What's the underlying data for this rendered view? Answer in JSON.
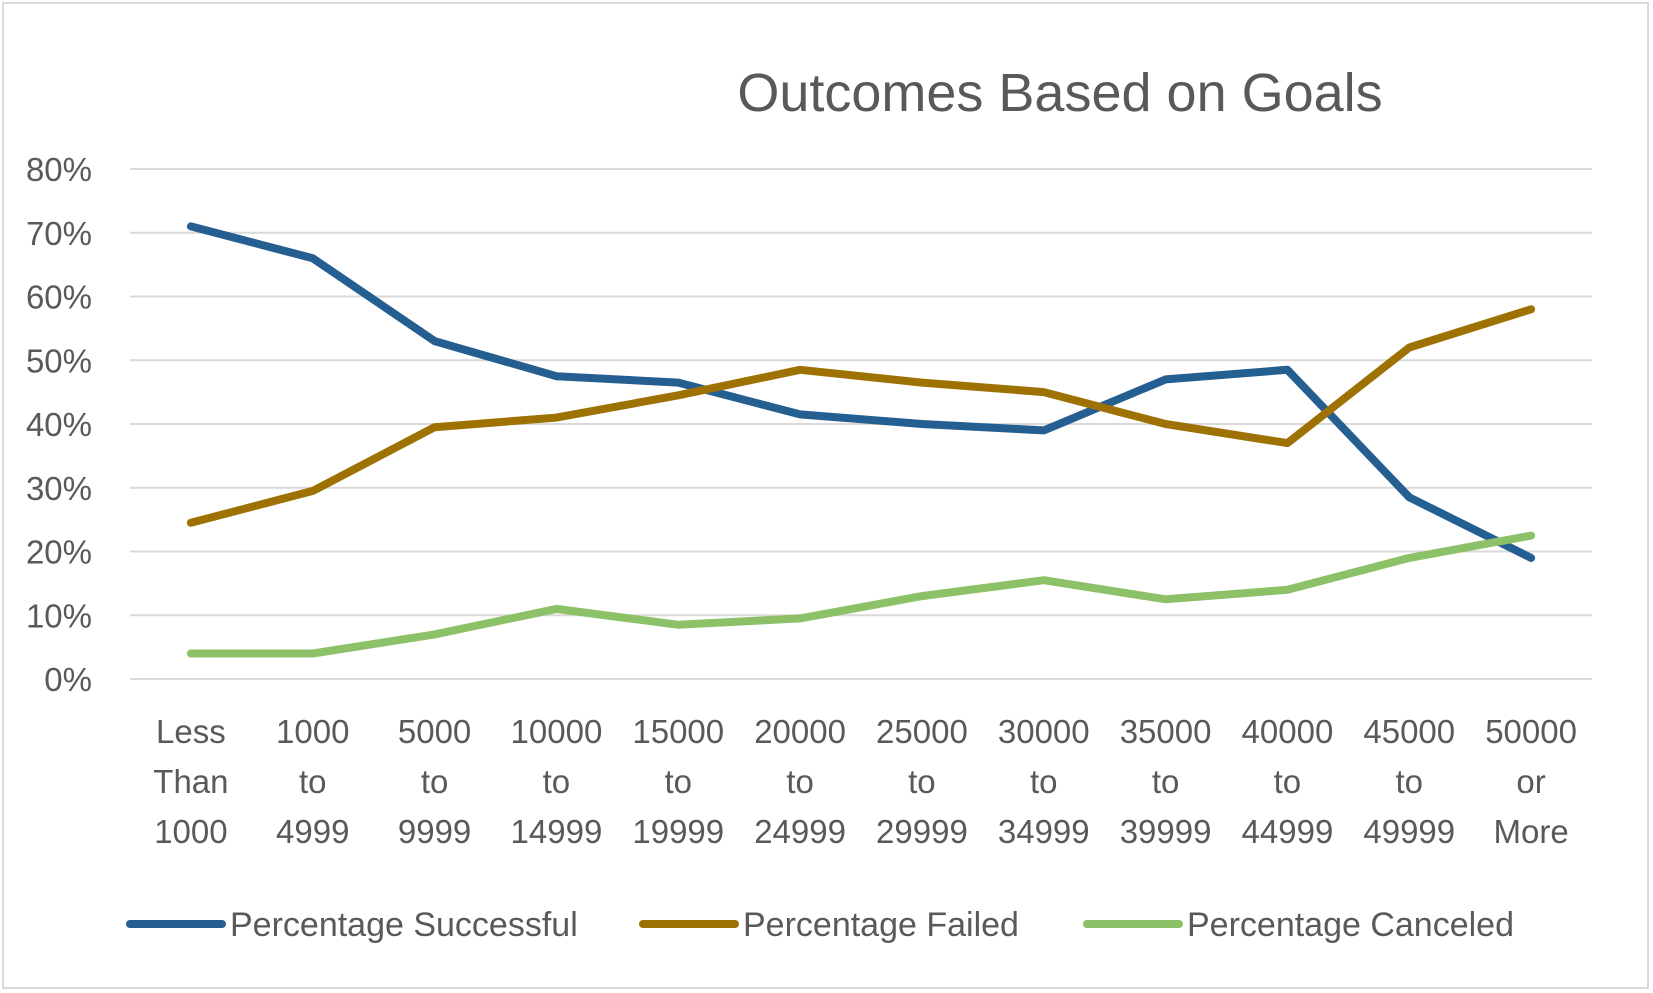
{
  "chart_data": {
    "type": "line",
    "title": "Outcomes Based on Goals",
    "xlabel": "",
    "ylabel": "",
    "ylim": [
      0,
      0.8
    ],
    "yticks": [
      "0%",
      "10%",
      "20%",
      "30%",
      "40%",
      "50%",
      "60%",
      "70%",
      "80%"
    ],
    "grid": true,
    "legend_position": "bottom",
    "categories": [
      [
        "Less",
        "Than",
        "1000"
      ],
      [
        "1000",
        "to",
        "4999"
      ],
      [
        "5000",
        "to",
        "9999"
      ],
      [
        "10000",
        "to",
        "14999"
      ],
      [
        "15000",
        "to",
        "19999"
      ],
      [
        "20000",
        "to",
        "24999"
      ],
      [
        "25000",
        "to",
        "29999"
      ],
      [
        "30000",
        "to",
        "34999"
      ],
      [
        "35000",
        "to",
        "39999"
      ],
      [
        "40000",
        "to",
        "44999"
      ],
      [
        "45000",
        "to",
        "49999"
      ],
      [
        "50000",
        "or",
        "More"
      ]
    ],
    "series": [
      {
        "name": "Percentage Successful",
        "color": "#255e91",
        "values": [
          0.71,
          0.66,
          0.53,
          0.475,
          0.465,
          0.415,
          0.4,
          0.39,
          0.47,
          0.485,
          0.285,
          0.19
        ]
      },
      {
        "name": "Percentage Failed",
        "color": "#9e7103",
        "values": [
          0.245,
          0.295,
          0.395,
          0.41,
          0.445,
          0.485,
          0.465,
          0.45,
          0.4,
          0.37,
          0.52,
          0.58
        ]
      },
      {
        "name": "Percentage Canceled",
        "color": "#8cc168",
        "values": [
          0.04,
          0.04,
          0.07,
          0.11,
          0.085,
          0.095,
          0.13,
          0.155,
          0.125,
          0.14,
          0.19,
          0.225
        ]
      }
    ]
  }
}
